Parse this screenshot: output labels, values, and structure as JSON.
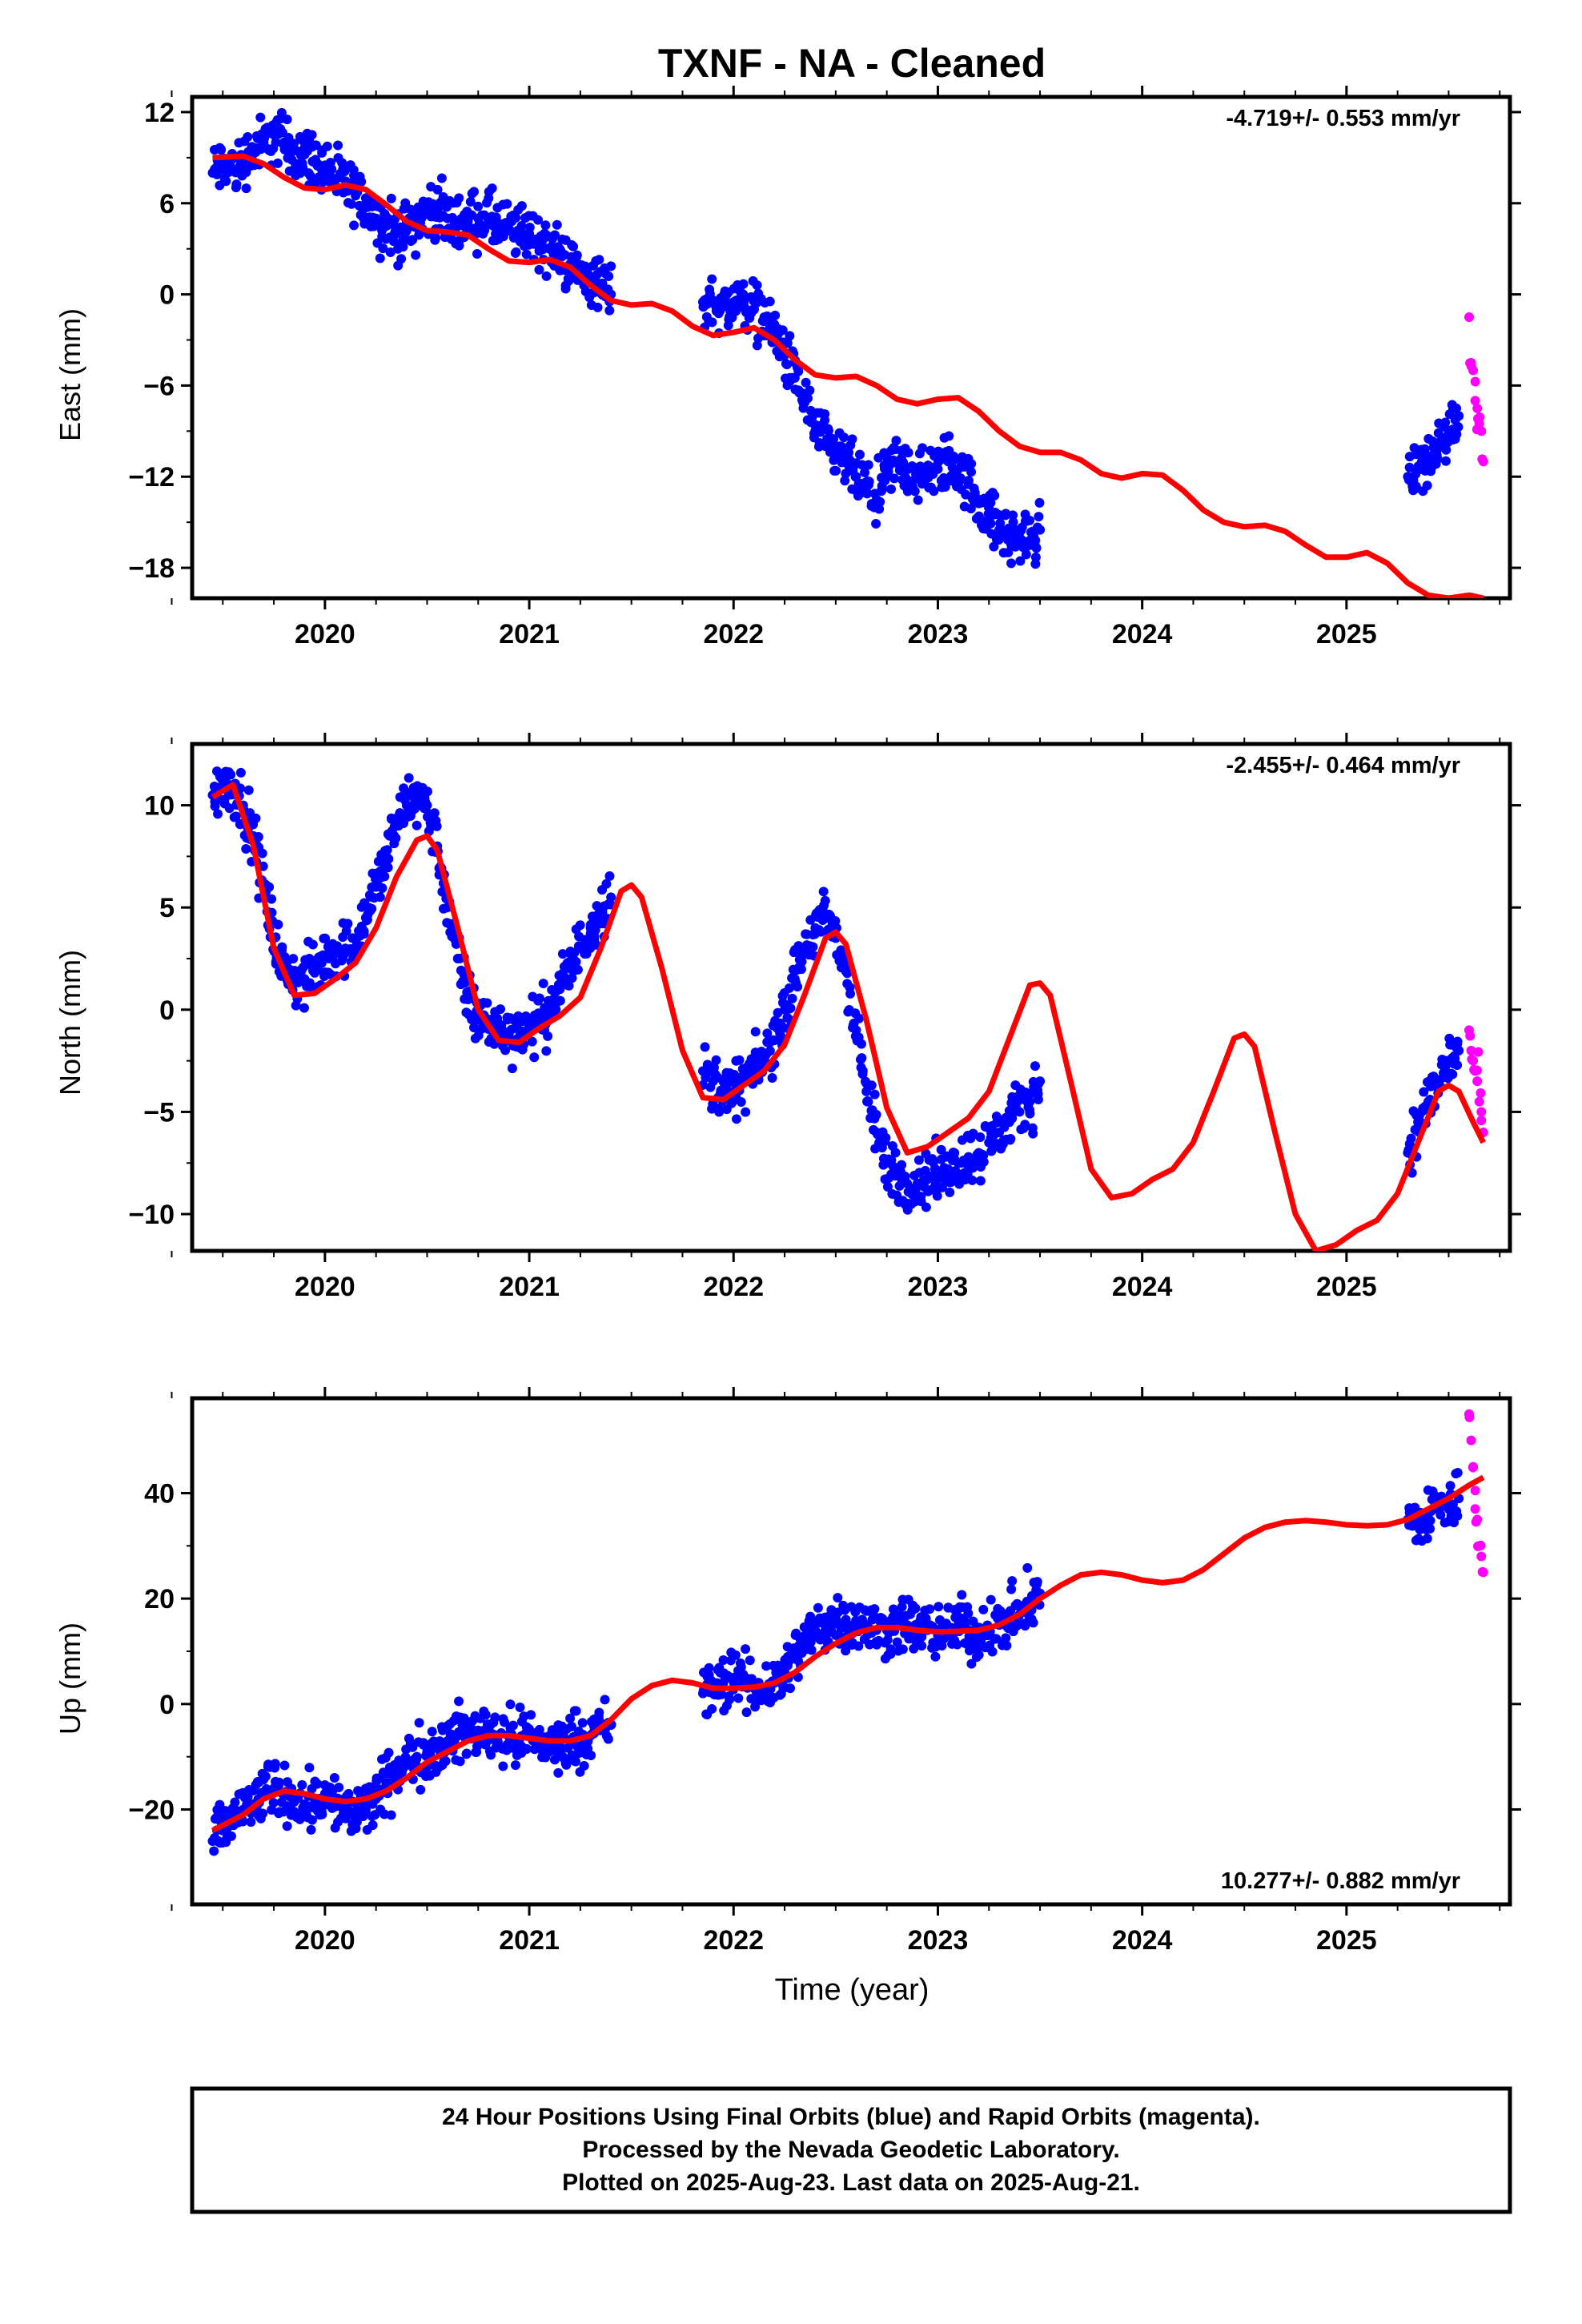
{
  "title": "TXNF  - NA - Cleaned",
  "colors": {
    "final": "#0000ff",
    "rapid": "#ff00ff",
    "model": "#ff0000",
    "frame": "#000000"
  },
  "chart_data": [
    {
      "type": "scatter",
      "name": "east",
      "ylabel": "East (mm)",
      "xlabel": "",
      "rate": "-4.719+/- 0.553 mm/yr",
      "rate_position": "top-right",
      "xlim": [
        2019.35,
        2025.8
      ],
      "ylim": [
        -20,
        13
      ],
      "yticks": [
        12,
        6,
        0,
        -6,
        -12,
        -18
      ],
      "ytick_labels": [
        "12",
        "6",
        "0",
        "−6",
        "−12",
        "−18"
      ],
      "xticks": [
        2020,
        2021,
        2022,
        2023,
        2024,
        2025
      ],
      "xtick_labels": [
        "2020",
        "2021",
        "2022",
        "2023",
        "2024",
        "2025"
      ],
      "series": [
        {
          "label": "final",
          "x": [
            2019.45,
            2019.5,
            2019.55,
            2019.6,
            2019.65,
            2019.7,
            2019.75,
            2019.8,
            2019.85,
            2019.9,
            2019.95,
            2020.0,
            2020.05,
            2020.1,
            2020.15,
            2020.2,
            2020.25,
            2020.3,
            2020.35,
            2020.4,
            2020.45,
            2020.5,
            2020.55,
            2020.6,
            2020.65,
            2020.7,
            2020.75,
            2020.8,
            2020.85,
            2020.9,
            2020.95,
            2021.0,
            2021.05,
            2021.1,
            2021.15,
            2021.2,
            2021.25,
            2021.3,
            2021.35,
            2021.4,
            2021.85,
            2021.9,
            2021.95,
            2022.0,
            2022.05,
            2022.1,
            2022.15,
            2022.2,
            2022.25,
            2022.3,
            2022.35,
            2022.4,
            2022.45,
            2022.5,
            2022.55,
            2022.6,
            2022.65,
            2022.7,
            2022.75,
            2022.8,
            2022.85,
            2022.9,
            2022.95,
            2023.0,
            2023.05,
            2023.1,
            2023.15,
            2023.2,
            2023.25,
            2023.3,
            2023.35,
            2023.4,
            2023.45,
            2023.5,
            2025.3,
            2025.35,
            2025.4,
            2025.45,
            2025.5,
            2025.55
          ],
          "y": [
            8,
            8.5,
            8.2,
            8.8,
            9.5,
            10,
            10.5,
            10,
            9.5,
            9.2,
            8.8,
            8.5,
            7.5,
            7,
            6.5,
            6,
            5,
            4.5,
            4,
            4.2,
            4.8,
            5.5,
            5.5,
            5,
            4.8,
            4.8,
            5,
            5,
            4.5,
            4.2,
            4,
            4,
            3.5,
            3,
            2.5,
            2,
            1.5,
            1,
            0.5,
            0,
            -0.5,
            -0.5,
            -0.8,
            -0.5,
            -0.5,
            -1,
            -1.5,
            -2.5,
            -4,
            -5.5,
            -7,
            -9,
            -10,
            -10.5,
            -11,
            -12,
            -13,
            -13.5,
            -12,
            -11,
            -11.5,
            -12,
            -12,
            -11.5,
            -11,
            -11.5,
            -12.5,
            -13.5,
            -14.5,
            -15.5,
            -16,
            -16,
            -16.2,
            -15.5,
            -12,
            -11.5,
            -11,
            -10,
            -9,
            -8
          ]
        },
        {
          "label": "rapid",
          "x": [
            2025.6,
            2025.61,
            2025.62,
            2025.63,
            2025.64,
            2025.65,
            2025.66,
            2025.67
          ],
          "y": [
            -1.5,
            -4.5,
            -5,
            -7,
            -7.5,
            -8.5,
            -9,
            -11
          ]
        }
      ],
      "model": {
        "x": [
          2019.45,
          2019.6,
          2019.7,
          2019.8,
          2019.9,
          2020.0,
          2020.1,
          2020.2,
          2020.3,
          2020.4,
          2020.5,
          2020.6,
          2020.7,
          2020.8,
          2020.9,
          2021.0,
          2021.1,
          2021.2,
          2021.3,
          2021.4,
          2021.5,
          2021.6,
          2021.7,
          2021.8,
          2021.9,
          2022.0,
          2022.1,
          2022.2,
          2022.3,
          2022.4,
          2022.5,
          2022.6,
          2022.7,
          2022.8,
          2022.9,
          2023.0,
          2023.1,
          2023.2,
          2023.3,
          2023.4,
          2023.5,
          2023.6,
          2023.7,
          2023.8,
          2023.9,
          2024.0,
          2024.1,
          2024.2,
          2024.3,
          2024.4,
          2024.5,
          2024.6,
          2024.7,
          2024.8,
          2024.9,
          2025.0,
          2025.1,
          2025.2,
          2025.3,
          2025.4,
          2025.5,
          2025.6,
          2025.67
        ],
        "y": [
          9,
          9.1,
          8.6,
          7.7,
          7,
          6.9,
          7.2,
          6.9,
          5.9,
          4.8,
          4.2,
          4.1,
          3.9,
          3,
          2.2,
          2.1,
          2.3,
          1.8,
          0.6,
          -0.4,
          -0.7,
          -0.6,
          -1.1,
          -2.1,
          -2.7,
          -2.5,
          -2.2,
          -3,
          -4.3,
          -5.3,
          -5.5,
          -5.4,
          -6,
          -6.9,
          -7.2,
          -6.9,
          -6.8,
          -7.7,
          -9,
          -10,
          -10.4,
          -10.4,
          -10.9,
          -11.8,
          -12.1,
          -11.8,
          -11.9,
          -12.9,
          -14.2,
          -15,
          -15.3,
          -15.2,
          -15.6,
          -16.5,
          -17.3,
          -17.3,
          -17,
          -17.7,
          -19,
          -19.8,
          -20,
          -19.8,
          -20
        ]
      }
    },
    {
      "type": "scatter",
      "name": "north",
      "ylabel": "North (mm)",
      "xlabel": "",
      "rate": "-2.455+/- 0.464 mm/yr",
      "rate_position": "top-right",
      "xlim": [
        2019.35,
        2025.8
      ],
      "ylim": [
        -11.8,
        13
      ],
      "yticks": [
        10,
        5,
        0,
        -5,
        -10
      ],
      "ytick_labels": [
        "10",
        "5",
        "0",
        "−5",
        "−10"
      ],
      "xticks": [
        2020,
        2021,
        2022,
        2023,
        2024,
        2025
      ],
      "xtick_labels": [
        "2020",
        "2021",
        "2022",
        "2023",
        "2024",
        "2025"
      ],
      "series": [
        {
          "label": "final",
          "x": [
            2019.45,
            2019.5,
            2019.55,
            2019.6,
            2019.65,
            2019.7,
            2019.75,
            2019.8,
            2019.85,
            2019.9,
            2019.95,
            2020.0,
            2020.05,
            2020.1,
            2020.15,
            2020.2,
            2020.25,
            2020.3,
            2020.35,
            2020.4,
            2020.45,
            2020.5,
            2020.55,
            2020.6,
            2020.65,
            2020.7,
            2020.75,
            2020.8,
            2020.85,
            2020.9,
            2020.95,
            2021.0,
            2021.05,
            2021.1,
            2021.15,
            2021.2,
            2021.25,
            2021.3,
            2021.35,
            2021.4,
            2021.85,
            2021.9,
            2021.95,
            2022.0,
            2022.05,
            2022.1,
            2022.15,
            2022.2,
            2022.25,
            2022.3,
            2022.35,
            2022.4,
            2022.45,
            2022.5,
            2022.55,
            2022.6,
            2022.65,
            2022.7,
            2022.75,
            2022.8,
            2022.85,
            2022.9,
            2022.95,
            2023.0,
            2023.05,
            2023.1,
            2023.15,
            2023.2,
            2023.25,
            2023.3,
            2023.35,
            2023.4,
            2023.45,
            2023.5,
            2025.3,
            2025.35,
            2025.4,
            2025.45,
            2025.5,
            2025.55
          ],
          "y": [
            10.5,
            11,
            11,
            10,
            8.5,
            6,
            3.5,
            2,
            1.5,
            1.5,
            1.8,
            2.5,
            3,
            3,
            3.5,
            4.5,
            6,
            7.5,
            9,
            10,
            10.5,
            10,
            8,
            5,
            2.5,
            0.5,
            -0.5,
            -0.5,
            -1,
            -1.2,
            -1,
            -0.8,
            -0.5,
            0,
            1,
            2,
            3,
            4,
            5,
            5.5,
            -3,
            -3.5,
            -4,
            -4,
            -3.5,
            -3,
            -2.5,
            -1.5,
            0,
            1.5,
            3,
            4,
            4.5,
            3.5,
            2,
            -1,
            -4,
            -6,
            -7.5,
            -8,
            -8.5,
            -8.5,
            -8.3,
            -8,
            -7.8,
            -7.5,
            -7.2,
            -7,
            -6.5,
            -6,
            -5.5,
            -5,
            -4.5,
            -3.5,
            -7,
            -5.5,
            -4.5,
            -3.5,
            -2.5,
            -2
          ]
        },
        {
          "label": "rapid",
          "x": [
            2025.6,
            2025.61,
            2025.62,
            2025.63,
            2025.64,
            2025.65,
            2025.66,
            2025.67
          ],
          "y": [
            -1,
            -2,
            -2.5,
            -3,
            -3.5,
            -4.5,
            -5,
            -6
          ]
        }
      ],
      "model": {
        "x": [
          2019.45,
          2019.55,
          2019.65,
          2019.75,
          2019.85,
          2019.95,
          2020.05,
          2020.15,
          2020.25,
          2020.35,
          2020.45,
          2020.5,
          2020.55,
          2020.65,
          2020.75,
          2020.85,
          2020.95,
          2021.05,
          2021.15,
          2021.25,
          2021.35,
          2021.45,
          2021.5,
          2021.55,
          2021.65,
          2021.75,
          2021.85,
          2021.95,
          2022.05,
          2022.15,
          2022.25,
          2022.35,
          2022.45,
          2022.5,
          2022.55,
          2022.65,
          2022.75,
          2022.85,
          2022.95,
          2023.05,
          2023.15,
          2023.25,
          2023.35,
          2023.45,
          2023.5,
          2023.55,
          2023.65,
          2023.75,
          2023.85,
          2023.95,
          2024.05,
          2024.15,
          2024.25,
          2024.35,
          2024.45,
          2024.5,
          2024.55,
          2024.65,
          2024.75,
          2024.85,
          2024.95,
          2025.05,
          2025.15,
          2025.25,
          2025.35,
          2025.45,
          2025.5,
          2025.55,
          2025.62,
          2025.67
        ],
        "y": [
          10.4,
          11,
          8,
          3,
          0.7,
          0.8,
          1.5,
          2.3,
          4,
          6.5,
          8.3,
          8.5,
          7.8,
          4,
          0,
          -1.5,
          -1.6,
          -0.9,
          -0.3,
          0.6,
          3,
          5.8,
          6.1,
          5.5,
          2,
          -2,
          -4.3,
          -4.4,
          -3.7,
          -3,
          -1.7,
          0.8,
          3.5,
          3.8,
          3.2,
          -0.5,
          -4.8,
          -7,
          -6.7,
          -6,
          -5.3,
          -4,
          -1.4,
          1.2,
          1.3,
          0.7,
          -3.5,
          -7.8,
          -9.2,
          -9,
          -8.3,
          -7.8,
          -6.5,
          -4,
          -1.4,
          -1.2,
          -1.8,
          -6,
          -10,
          -11.8,
          -11.5,
          -10.8,
          -10.3,
          -9,
          -6.5,
          -4,
          -3.7,
          -4,
          -5.5,
          -6.5
        ]
      }
    },
    {
      "type": "scatter",
      "name": "up",
      "ylabel": "Up (mm)",
      "xlabel": "Time (year)",
      "rate": "10.277+/- 0.882 mm/yr",
      "rate_position": "bottom-right",
      "xlim": [
        2019.35,
        2025.8
      ],
      "ylim": [
        -38,
        58
      ],
      "yticks": [
        40,
        20,
        0,
        -20
      ],
      "ytick_labels": [
        "40",
        "20",
        "0",
        "−20"
      ],
      "xticks": [
        2020,
        2021,
        2022,
        2023,
        2024,
        2025
      ],
      "xtick_labels": [
        "2020",
        "2021",
        "2022",
        "2023",
        "2024",
        "2025"
      ],
      "series": [
        {
          "label": "final",
          "x": [
            2019.45,
            2019.5,
            2019.55,
            2019.6,
            2019.65,
            2019.7,
            2019.75,
            2019.8,
            2019.85,
            2019.9,
            2019.95,
            2020.0,
            2020.05,
            2020.1,
            2020.15,
            2020.2,
            2020.25,
            2020.3,
            2020.35,
            2020.4,
            2020.45,
            2020.5,
            2020.55,
            2020.6,
            2020.65,
            2020.7,
            2020.75,
            2020.8,
            2020.85,
            2020.9,
            2020.95,
            2021.0,
            2021.05,
            2021.1,
            2021.15,
            2021.2,
            2021.25,
            2021.3,
            2021.35,
            2021.4,
            2021.85,
            2021.9,
            2021.95,
            2022.0,
            2022.05,
            2022.1,
            2022.15,
            2022.2,
            2022.25,
            2022.3,
            2022.35,
            2022.4,
            2022.45,
            2022.5,
            2022.55,
            2022.6,
            2022.65,
            2022.7,
            2022.75,
            2022.8,
            2022.85,
            2022.9,
            2022.95,
            2023.0,
            2023.05,
            2023.1,
            2023.15,
            2023.2,
            2023.25,
            2023.3,
            2023.35,
            2023.4,
            2023.45,
            2023.5,
            2025.3,
            2025.35,
            2025.4,
            2025.45,
            2025.5,
            2025.55
          ],
          "y": [
            -26,
            -24,
            -22,
            -20,
            -19,
            -17,
            -16,
            -17,
            -18,
            -19,
            -18,
            -17,
            -19,
            -20,
            -21,
            -20,
            -18,
            -15,
            -13,
            -11,
            -10,
            -9,
            -8,
            -7,
            -6,
            -6,
            -5,
            -5,
            -6,
            -6,
            -7,
            -6,
            -7,
            -8,
            -8,
            -7,
            -6,
            -6,
            -5,
            -4,
            2,
            3,
            4,
            5,
            4,
            3,
            3,
            4,
            6,
            9,
            12,
            14,
            15,
            16,
            16,
            15,
            15,
            14,
            14,
            15,
            15,
            15,
            14,
            13,
            14,
            15,
            14,
            13,
            14,
            15,
            16,
            17,
            19,
            21,
            35,
            34,
            36,
            38,
            37,
            39
          ]
        },
        {
          "label": "rapid",
          "x": [
            2025.6,
            2025.61,
            2025.62,
            2025.63,
            2025.64,
            2025.65,
            2025.66,
            2025.67
          ],
          "y": [
            55,
            50,
            45,
            37,
            35,
            30,
            28,
            25
          ]
        }
      ],
      "model": {
        "x": [
          2019.45,
          2019.6,
          2019.7,
          2019.8,
          2019.9,
          2020.0,
          2020.1,
          2020.2,
          2020.3,
          2020.4,
          2020.5,
          2020.6,
          2020.7,
          2020.8,
          2020.9,
          2021.0,
          2021.1,
          2021.2,
          2021.3,
          2021.4,
          2021.5,
          2021.6,
          2021.7,
          2021.8,
          2021.9,
          2022.0,
          2022.1,
          2022.2,
          2022.3,
          2022.4,
          2022.5,
          2022.6,
          2022.7,
          2022.8,
          2022.9,
          2023.0,
          2023.1,
          2023.2,
          2023.3,
          2023.4,
          2023.5,
          2023.6,
          2023.7,
          2023.8,
          2023.9,
          2024.0,
          2024.1,
          2024.2,
          2024.3,
          2024.4,
          2024.5,
          2024.6,
          2024.7,
          2024.8,
          2024.9,
          2025.0,
          2025.1,
          2025.2,
          2025.3,
          2025.4,
          2025.5,
          2025.6,
          2025.67
        ],
        "y": [
          -24,
          -21,
          -18,
          -16.5,
          -17,
          -18,
          -18.5,
          -18,
          -16.5,
          -14,
          -11,
          -9,
          -7,
          -6,
          -6,
          -6.5,
          -7,
          -7,
          -6,
          -3,
          1,
          3.5,
          4.5,
          4,
          3,
          3,
          3.2,
          4,
          6,
          9,
          11.5,
          13.5,
          14.5,
          14.5,
          14,
          13.7,
          13.8,
          14,
          15,
          17,
          20,
          22.5,
          24.5,
          25,
          24.5,
          23.5,
          23,
          23.5,
          25.5,
          28.5,
          31.5,
          33.5,
          34.5,
          34.8,
          34.5,
          34,
          33.8,
          34,
          35,
          37,
          39,
          41.5,
          43
        ]
      }
    }
  ],
  "footer": {
    "line1": "24 Hour Positions Using Final Orbits (blue) and Rapid Orbits (magenta).",
    "line2": "Processed by the Nevada Geodetic Laboratory.",
    "line3": "Plotted on 2025-Aug-23. Last data on 2025-Aug-21."
  }
}
